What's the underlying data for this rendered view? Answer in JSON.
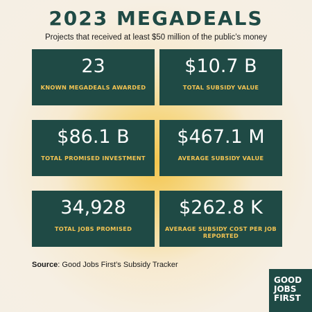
{
  "title": "2023 MEGADEALS",
  "subtitle": "Projects that received at least $50 million of the public’s money",
  "cards": [
    {
      "value": "23",
      "label": "KNOWN MEGADEALS AWARDED"
    },
    {
      "value": "$10.7 B",
      "label": "TOTAL SUBSIDY VALUE"
    },
    {
      "value": "$86.1 B",
      "label": "TOTAL PROMISED INVESTMENT"
    },
    {
      "value": "$467.1 M",
      "label": "AVERAGE SUBSIDY VALUE"
    },
    {
      "value": "34,928",
      "label": "TOTAL JOBS PROMISED"
    },
    {
      "value": "$262.8 K",
      "label": "AVERAGE SUBSIDY COST PER JOB REPORTED"
    }
  ],
  "source": {
    "prefix": "Source",
    "text": ": Good Jobs First’s Subsidy Tracker"
  },
  "logo": {
    "lines": [
      "GOOD",
      "JOBS",
      "FIRST"
    ]
  },
  "colors": {
    "card_bg": "#1f4a45",
    "label": "#f3c453",
    "title": "#1f4a45"
  }
}
